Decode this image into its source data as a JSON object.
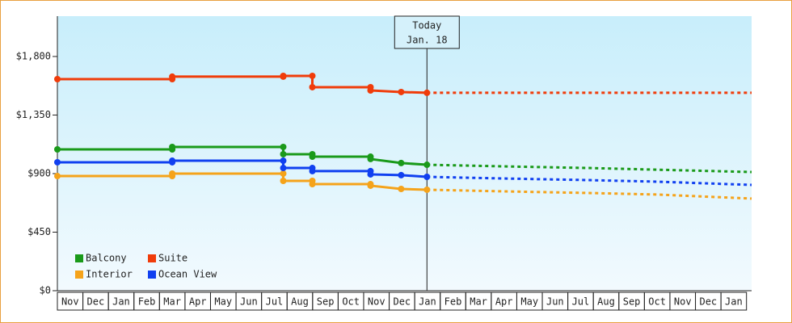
{
  "chart_data": {
    "type": "line",
    "ylim": [
      0,
      2110
    ],
    "yticks": [
      {
        "value": 0,
        "label": "$0"
      },
      {
        "value": 450,
        "label": "$450"
      },
      {
        "value": 900,
        "label": "$900"
      },
      {
        "value": 1350,
        "label": "$1,350"
      },
      {
        "value": 1800,
        "label": "$1,800"
      }
    ],
    "xlim": [
      0,
      27.2
    ],
    "xticks": [
      {
        "value": 0.5,
        "label": "Nov"
      },
      {
        "value": 1.5,
        "label": "Dec"
      },
      {
        "value": 2.5,
        "label": "Jan"
      },
      {
        "value": 3.5,
        "label": "Feb"
      },
      {
        "value": 4.5,
        "label": "Mar"
      },
      {
        "value": 5.5,
        "label": "Apr"
      },
      {
        "value": 6.5,
        "label": "May"
      },
      {
        "value": 7.5,
        "label": "Jun"
      },
      {
        "value": 8.5,
        "label": "Jul"
      },
      {
        "value": 9.5,
        "label": "Aug"
      },
      {
        "value": 10.5,
        "label": "Sep"
      },
      {
        "value": 11.5,
        "label": "Oct"
      },
      {
        "value": 12.5,
        "label": "Nov"
      },
      {
        "value": 13.5,
        "label": "Dec"
      },
      {
        "value": 14.5,
        "label": "Jan"
      },
      {
        "value": 15.5,
        "label": "Feb"
      },
      {
        "value": 16.5,
        "label": "Mar"
      },
      {
        "value": 17.5,
        "label": "Apr"
      },
      {
        "value": 18.5,
        "label": "May"
      },
      {
        "value": 19.5,
        "label": "Jun"
      },
      {
        "value": 20.5,
        "label": "Jul"
      },
      {
        "value": 21.5,
        "label": "Aug"
      },
      {
        "value": 22.5,
        "label": "Sep"
      },
      {
        "value": 23.5,
        "label": "Oct"
      },
      {
        "value": 24.5,
        "label": "Nov"
      },
      {
        "value": 25.5,
        "label": "Dec"
      },
      {
        "value": 26.5,
        "label": "Jan"
      }
    ],
    "today": {
      "x": 14.48,
      "label": [
        "Today",
        "Jan. 18"
      ]
    },
    "series": [
      {
        "name": "Balcony",
        "color": "#1a9a1a",
        "x": [
          0,
          4.5,
          4.5,
          8.85,
          8.85,
          9.99,
          9.99,
          12.27,
          12.27,
          13.47,
          14.48
        ],
        "values": [
          1086,
          1086,
          1105,
          1105,
          1049,
          1049,
          1030,
          1030,
          1012,
          981,
          968
        ],
        "forecast": {
          "x": [
            14.48,
            17.6,
            20.8,
            23.5,
            27.2
          ],
          "values": [
            968,
            955,
            943,
            930,
            912
          ]
        }
      },
      {
        "name": "Suite",
        "color": "#f03c0a",
        "x": [
          0,
          4.5,
          4.5,
          8.85,
          8.85,
          9.99,
          9.99,
          12.27,
          12.27,
          13.47,
          14.48
        ],
        "values": [
          1626,
          1626,
          1645,
          1645,
          1651,
          1651,
          1564,
          1564,
          1539,
          1527,
          1521
        ],
        "forecast": {
          "x": [
            14.48,
            17.6,
            20.8,
            23.5,
            27.2
          ],
          "values": [
            1521,
            1521,
            1521,
            1521,
            1521
          ]
        }
      },
      {
        "name": "Interior",
        "color": "#f5a31a",
        "x": [
          0,
          4.5,
          4.5,
          8.85,
          8.85,
          9.99,
          9.99,
          12.27,
          12.27,
          13.47,
          14.48
        ],
        "values": [
          881,
          881,
          900,
          900,
          844,
          844,
          819,
          819,
          807,
          782,
          776
        ],
        "forecast": {
          "x": [
            14.48,
            17.6,
            20.8,
            23.5,
            27.2
          ],
          "values": [
            776,
            763,
            751,
            739,
            708
          ]
        }
      },
      {
        "name": "Ocean View",
        "color": "#1040f0",
        "x": [
          0,
          4.5,
          4.5,
          8.85,
          8.85,
          9.99,
          9.99,
          12.27,
          12.27,
          13.47,
          14.48
        ],
        "values": [
          987,
          987,
          999,
          999,
          943,
          943,
          919,
          919,
          894,
          888,
          875
        ],
        "forecast": {
          "x": [
            14.48,
            17.6,
            20.8,
            23.5,
            27.2
          ],
          "values": [
            875,
            862,
            850,
            838,
            813
          ]
        }
      }
    ]
  }
}
